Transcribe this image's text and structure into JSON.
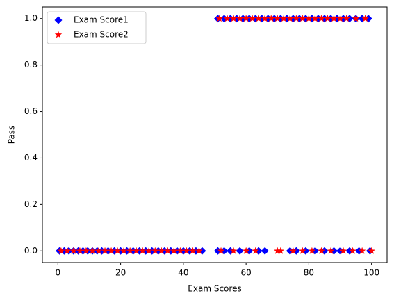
{
  "chart_data": {
    "type": "scatter",
    "xlabel": "Exam Scores",
    "ylabel": "Pass",
    "xlim": [
      -4.95,
      104.95
    ],
    "ylim": [
      -0.05,
      1.05
    ],
    "xticks": [
      0,
      20,
      40,
      60,
      80,
      100
    ],
    "yticks": [
      {
        "value": 0,
        "label": "0.0"
      },
      {
        "value": 0.2,
        "label": "0.2"
      },
      {
        "value": 0.4,
        "label": "0.4"
      },
      {
        "value": 0.6,
        "label": "0.6"
      },
      {
        "value": 0.8,
        "label": "0.8"
      },
      {
        "value": 1,
        "label": "1.0"
      }
    ],
    "legend": "upper left",
    "series": [
      {
        "name": "Exam Score1",
        "color": "#0000ff",
        "marker": "diamond",
        "x": [
          0.5,
          2,
          3.5,
          5,
          6.5,
          8,
          9.5,
          11,
          12.5,
          14,
          16,
          18,
          20,
          22,
          24,
          26,
          28,
          30,
          32,
          34,
          36,
          38,
          40,
          42,
          44,
          46,
          51,
          53,
          55,
          58,
          61,
          64,
          66,
          74,
          76,
          79,
          82,
          85,
          88,
          90,
          93,
          96,
          99.5,
          51,
          53,
          55,
          57,
          59,
          61,
          63,
          65,
          67,
          69,
          71,
          73,
          75,
          77,
          79,
          81,
          83,
          85,
          87,
          89,
          91,
          93,
          95,
          97,
          99
        ],
        "values": [
          0,
          0,
          0,
          0,
          0,
          0,
          0,
          0,
          0,
          0,
          0,
          0,
          0,
          0,
          0,
          0,
          0,
          0,
          0,
          0,
          0,
          0,
          0,
          0,
          0,
          0,
          0,
          0,
          0,
          0,
          0,
          0,
          0,
          0,
          0,
          0,
          0,
          0,
          0,
          0,
          0,
          0,
          0,
          1,
          1,
          1,
          1,
          1,
          1,
          1,
          1,
          1,
          1,
          1,
          1,
          1,
          1,
          1,
          1,
          1,
          1,
          1,
          1,
          1,
          1,
          1,
          1,
          1
        ]
      },
      {
        "name": "Exam Score2",
        "color": "#ff0000",
        "marker": "star",
        "x": [
          1,
          3,
          5,
          7,
          9,
          11,
          13,
          15,
          17,
          19,
          21,
          23,
          25,
          27,
          29,
          31,
          33,
          35,
          37,
          39,
          41,
          43,
          45,
          52,
          56,
          60,
          63,
          70,
          71,
          75,
          78,
          81,
          84,
          87,
          91,
          94,
          97,
          100,
          51.5,
          54,
          56,
          58,
          60,
          62,
          64,
          66,
          68,
          70,
          72,
          74,
          76,
          78,
          80,
          82,
          84,
          86,
          88,
          90,
          92,
          95,
          98
        ],
        "values": [
          0,
          0,
          0,
          0,
          0,
          0,
          0,
          0,
          0,
          0,
          0,
          0,
          0,
          0,
          0,
          0,
          0,
          0,
          0,
          0,
          0,
          0,
          0,
          0,
          0,
          0,
          0,
          0,
          0,
          0,
          0,
          0,
          0,
          0,
          0,
          0,
          0,
          0,
          1,
          1,
          1,
          1,
          1,
          1,
          1,
          1,
          1,
          1,
          1,
          1,
          1,
          1,
          1,
          1,
          1,
          1,
          1,
          1,
          1,
          1,
          1
        ]
      }
    ]
  }
}
